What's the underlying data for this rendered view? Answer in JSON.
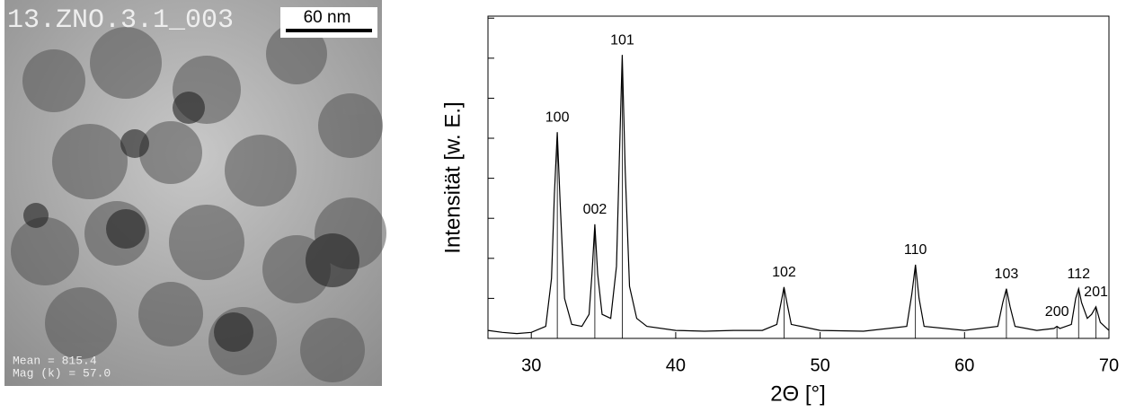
{
  "image": {
    "label": "13.ZNO.3.1_003",
    "scale_bar": "60 nm",
    "mean": "Mean = 815.4",
    "mag": "Mag (k) = 57.0"
  },
  "chart_data": {
    "type": "line",
    "x_label": "2Θ [°]",
    "y_label": "Intensität [w. E.]",
    "xlim": [
      27,
      70
    ],
    "xticks": [
      30,
      40,
      50,
      60,
      70
    ],
    "ylim": [
      0,
      8.05
    ],
    "yticks": [
      0,
      1,
      2,
      3,
      4,
      5,
      6,
      7,
      8
    ],
    "series": [
      {
        "color": "#000000",
        "x": [
          27,
          28,
          29,
          30,
          31,
          31.4,
          31.6,
          31.8,
          32.0,
          32.3,
          32.8,
          33.5,
          34.0,
          34.2,
          34.4,
          34.6,
          34.9,
          35.5,
          35.9,
          36.1,
          36.3,
          36.5,
          36.8,
          37.3,
          38,
          40,
          42,
          44,
          46,
          47,
          47.3,
          47.5,
          47.7,
          48,
          50,
          53,
          56,
          56.35,
          56.6,
          56.85,
          57.2,
          60,
          62.3,
          62.65,
          62.9,
          63.15,
          63.5,
          65,
          66.2,
          66.4,
          66.6,
          67.4,
          67.7,
          67.9,
          68.1,
          68.5,
          68.8,
          69.1,
          69.4,
          70
        ],
        "values": [
          0.2,
          0.15,
          0.12,
          0.15,
          0.3,
          1.5,
          3.6,
          5.15,
          3.4,
          1.0,
          0.35,
          0.3,
          0.6,
          1.6,
          2.85,
          1.6,
          0.6,
          0.5,
          1.8,
          4.5,
          7.08,
          4.2,
          1.3,
          0.5,
          0.3,
          0.2,
          0.18,
          0.2,
          0.2,
          0.35,
          0.9,
          1.28,
          0.9,
          0.35,
          0.2,
          0.18,
          0.3,
          1.1,
          1.84,
          1.0,
          0.3,
          0.2,
          0.3,
          0.9,
          1.24,
          0.8,
          0.3,
          0.2,
          0.25,
          0.3,
          0.25,
          0.35,
          1.0,
          1.24,
          0.9,
          0.5,
          0.6,
          0.79,
          0.4,
          0.2
        ]
      }
    ],
    "annotations": [
      {
        "text": "100",
        "x": 31.8,
        "y": 5.15
      },
      {
        "text": "002",
        "x": 34.4,
        "y": 2.85
      },
      {
        "text": "101",
        "x": 36.3,
        "y": 7.08
      },
      {
        "text": "102",
        "x": 47.5,
        "y": 1.28
      },
      {
        "text": "110",
        "x": 56.6,
        "y": 1.84
      },
      {
        "text": "103",
        "x": 62.9,
        "y": 1.24
      },
      {
        "text": "200",
        "x": 66.4,
        "y": 0.3
      },
      {
        "text": "112",
        "x": 67.9,
        "y": 1.24
      },
      {
        "text": "201",
        "x": 69.1,
        "y": 0.79
      }
    ]
  }
}
